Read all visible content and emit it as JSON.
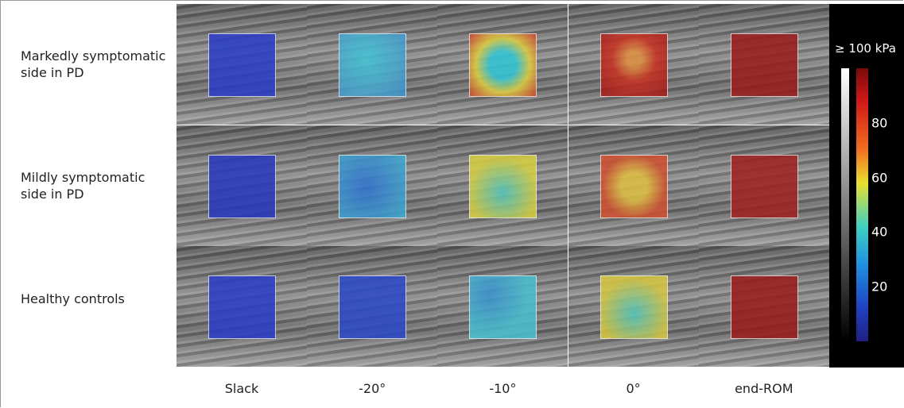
{
  "rows": [
    "Markedly symptomatic\nside in PD",
    "Mildly symptomatic\nside in PD",
    "Healthy controls"
  ],
  "columns": [
    "Slack",
    "-20°",
    "-10°",
    "0°",
    "end-ROM"
  ],
  "colorbar": {
    "label": "≥ 100 kPa",
    "range": [
      0,
      100
    ],
    "ticks": [
      20,
      40,
      60,
      80
    ]
  }
}
